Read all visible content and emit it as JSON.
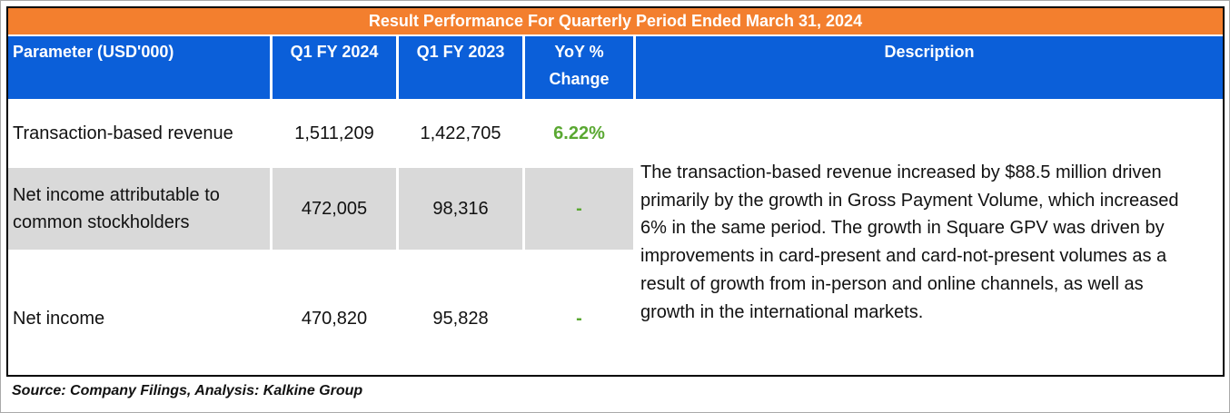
{
  "title": "Result Performance For Quarterly Period Ended March 31, 2024",
  "headers": {
    "parameter": "Parameter  (USD'000)",
    "q1_fy2024": "Q1 FY 2024",
    "q1_fy2023": "Q1 FY 2023",
    "yoy_line1": "YoY %",
    "yoy_line2": "Change",
    "description": "Description"
  },
  "rows": [
    {
      "parameter": "Transaction-based revenue",
      "q1_fy2024": "1,511,209",
      "q1_fy2023": "1,422,705",
      "yoy": "6.22%"
    },
    {
      "parameter_line1": "Net income attributable to",
      "parameter_line2": "common stockholders",
      "q1_fy2024": "472,005",
      "q1_fy2023": "98,316",
      "yoy": "-"
    },
    {
      "parameter": "Net income",
      "q1_fy2024": "470,820",
      "q1_fy2023": "95,828",
      "yoy": "-"
    }
  ],
  "description_lines": [
    "The transaction-based revenue increased by $88.5 million driven",
    "primarily by the growth in Gross Payment Volume, which increased",
    "6% in the same period. The growth in Square GPV was driven by",
    "improvements in card-present and card-not-present volumes as a",
    "result of growth from in-person and online channels, as well as",
    "growth in the international markets."
  ],
  "source": "Source: Company Filings, Analysis: Kalkine Group",
  "colors": {
    "title_bar": "#f37f2e",
    "header_bar": "#0b5fd9",
    "shaded_row": "#d9d9d9",
    "positive_change": "#5aa832"
  }
}
